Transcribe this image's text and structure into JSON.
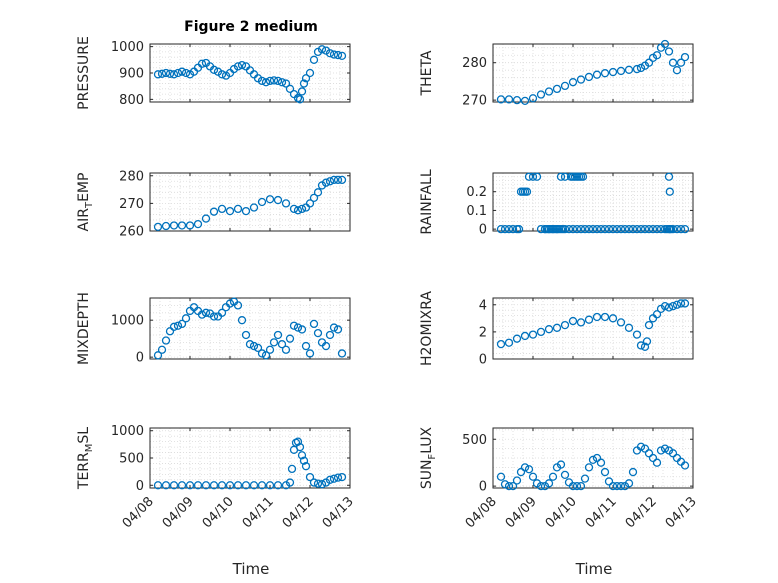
{
  "figure": {
    "title": "Figure 2 medium",
    "xlabel": "Time",
    "x_dates": [
      "04/08",
      "04/09",
      "04/10",
      "04/11",
      "04/12",
      "04/13"
    ],
    "marker_color": "#0072BD"
  },
  "chart_data": [
    {
      "type": "scatter",
      "ylabel": "PRESSURE",
      "yticks": [
        "800",
        "900",
        "1000"
      ],
      "ylim": [
        790,
        1010
      ],
      "x": [
        8.2,
        8.3,
        8.4,
        8.5,
        8.6,
        8.7,
        8.8,
        8.9,
        9.0,
        9.1,
        9.2,
        9.3,
        9.4,
        9.5,
        9.6,
        9.7,
        9.8,
        9.9,
        10.0,
        10.1,
        10.2,
        10.3,
        10.4,
        10.5,
        10.6,
        10.7,
        10.8,
        10.9,
        11.0,
        11.1,
        11.2,
        11.3,
        11.4,
        11.5,
        11.6,
        11.7,
        11.75,
        11.8,
        11.85,
        11.9,
        12.0,
        12.1,
        12.2,
        12.3,
        12.4,
        12.5,
        12.6,
        12.7,
        12.8
      ],
      "y": [
        895,
        897,
        900,
        897,
        895,
        900,
        905,
        900,
        895,
        905,
        920,
        935,
        938,
        925,
        912,
        905,
        895,
        890,
        900,
        915,
        925,
        930,
        925,
        910,
        895,
        880,
        870,
        865,
        870,
        872,
        870,
        865,
        860,
        840,
        820,
        805,
        800,
        830,
        860,
        880,
        900,
        950,
        980,
        990,
        985,
        975,
        970,
        968,
        965
      ]
    },
    {
      "type": "scatter",
      "ylabel": "THETA",
      "yticks": [
        "270",
        "280"
      ],
      "ylim": [
        269.5,
        285
      ],
      "x": [
        8.2,
        8.4,
        8.6,
        8.8,
        9.0,
        9.2,
        9.4,
        9.6,
        9.8,
        10.0,
        10.2,
        10.4,
        10.6,
        10.8,
        11.0,
        11.2,
        11.4,
        11.6,
        11.7,
        11.8,
        11.9,
        12.0,
        12.1,
        12.2,
        12.3,
        12.4,
        12.5,
        12.6,
        12.7,
        12.8
      ],
      "y": [
        270.2,
        270.2,
        270.0,
        269.8,
        270.5,
        271.5,
        272.3,
        273,
        273.8,
        274.8,
        275.5,
        276.2,
        276.8,
        277.2,
        277.5,
        277.8,
        278.1,
        278.3,
        278.6,
        279.2,
        280,
        281.3,
        282,
        284,
        285,
        283,
        280,
        278,
        280,
        281.5
      ]
    },
    {
      "type": "scatter",
      "ylabel": "AIR_TEMP",
      "ylabel_main": "AIR",
      "ylabel_sub": "T",
      "ylabel_rest": "EMP",
      "yticks": [
        "260",
        "270",
        "280"
      ],
      "ylim": [
        260,
        281
      ],
      "x": [
        8.2,
        8.4,
        8.6,
        8.8,
        9.0,
        9.2,
        9.4,
        9.6,
        9.8,
        10.0,
        10.2,
        10.4,
        10.6,
        10.8,
        11.0,
        11.2,
        11.4,
        11.6,
        11.7,
        11.8,
        11.9,
        12.0,
        12.1,
        12.2,
        12.3,
        12.4,
        12.5,
        12.6,
        12.7,
        12.8
      ],
      "y": [
        261.5,
        261.8,
        262,
        262,
        262,
        262.5,
        264.5,
        267,
        268,
        267.2,
        268,
        267.2,
        268.5,
        270.5,
        271.5,
        271.2,
        270,
        268,
        267.5,
        268,
        268.5,
        270,
        272,
        274,
        276.5,
        277.5,
        278,
        278.5,
        278.5,
        278.5
      ]
    },
    {
      "type": "scatter",
      "ylabel": "RAINFALL",
      "yticks": [
        "0",
        "0.1",
        "0.2"
      ],
      "ylim": [
        -0.01,
        0.3
      ],
      "x": [
        8.2,
        8.3,
        8.4,
        8.5,
        8.6,
        8.65,
        8.7,
        8.75,
        8.8,
        8.85,
        8.9,
        9.0,
        9.1,
        9.2,
        9.3,
        9.4,
        9.5,
        9.6,
        9.7,
        9.8,
        9.9,
        10.0,
        10.1,
        10.2,
        10.3,
        10.4,
        10.5,
        10.6,
        10.7,
        10.8,
        10.9,
        11.0,
        11.1,
        11.2,
        11.3,
        11.4,
        11.5,
        11.6,
        11.7,
        11.8,
        11.9,
        12.0,
        12.1,
        12.2,
        12.3,
        12.35,
        12.4,
        12.42,
        12.45,
        12.5,
        12.6,
        12.7,
        12.8,
        9.3,
        9.35,
        9.4,
        9.45,
        9.5,
        9.55,
        9.6,
        9.65,
        9.7,
        9.75,
        9.8,
        9.95,
        10.0,
        10.05,
        10.1,
        10.15,
        10.2,
        10.25,
        12.4,
        12.42
      ],
      "y": [
        0,
        0,
        0,
        0,
        0,
        0,
        0.2,
        0.2,
        0.2,
        0.2,
        0.28,
        0.28,
        0.28,
        0,
        0,
        0,
        0,
        0,
        0.28,
        0.28,
        0,
        0,
        0,
        0,
        0,
        0,
        0,
        0,
        0,
        0,
        0,
        0,
        0,
        0,
        0,
        0,
        0,
        0,
        0,
        0,
        0,
        0,
        0,
        0,
        0,
        0,
        0,
        0,
        0,
        0,
        0,
        0,
        0,
        0,
        0,
        0,
        0,
        0,
        0,
        0,
        0,
        0,
        0,
        0,
        0.28,
        0.28,
        0.28,
        0.28,
        0.28,
        0.28,
        0.28,
        0.28,
        0.2
      ]
    },
    {
      "type": "scatter",
      "ylabel": "MIXDEPTH",
      "yticks": [
        "0",
        "1000"
      ],
      "ylim": [
        -50,
        1600
      ],
      "x": [
        8.2,
        8.3,
        8.4,
        8.5,
        8.6,
        8.7,
        8.8,
        8.9,
        9.0,
        9.1,
        9.2,
        9.3,
        9.4,
        9.5,
        9.6,
        9.7,
        9.8,
        9.9,
        10.0,
        10.1,
        10.2,
        10.3,
        10.4,
        10.5,
        10.6,
        10.7,
        10.8,
        10.9,
        11.0,
        11.1,
        11.2,
        11.3,
        11.4,
        11.5,
        11.6,
        11.7,
        11.8,
        11.9,
        12.0,
        12.1,
        12.2,
        12.3,
        12.4,
        12.5,
        12.6,
        12.7,
        12.8
      ],
      "y": [
        50,
        200,
        450,
        700,
        820,
        850,
        900,
        1050,
        1250,
        1350,
        1250,
        1150,
        1200,
        1180,
        1100,
        1100,
        1200,
        1350,
        1450,
        1500,
        1400,
        1000,
        600,
        350,
        300,
        250,
        100,
        50,
        200,
        400,
        600,
        350,
        200,
        500,
        850,
        800,
        750,
        300,
        100,
        900,
        650,
        400,
        300,
        600,
        800,
        750,
        100
      ]
    },
    {
      "type": "scatter",
      "ylabel": "H2OMIXRA",
      "yticks": [
        "0",
        "2",
        "4"
      ],
      "ylim": [
        0,
        4.5
      ],
      "x": [
        8.2,
        8.4,
        8.6,
        8.8,
        9.0,
        9.2,
        9.4,
        9.6,
        9.8,
        10.0,
        10.2,
        10.4,
        10.6,
        10.8,
        11.0,
        11.2,
        11.4,
        11.6,
        11.7,
        11.8,
        11.85,
        11.9,
        12.0,
        12.1,
        12.2,
        12.3,
        12.4,
        12.5,
        12.6,
        12.7,
        12.8
      ],
      "y": [
        1.1,
        1.2,
        1.5,
        1.7,
        1.8,
        2.0,
        2.2,
        2.3,
        2.5,
        2.8,
        2.7,
        2.9,
        3.1,
        3.1,
        3.0,
        2.7,
        2.3,
        1.8,
        1.0,
        0.9,
        1.3,
        2.5,
        3.0,
        3.3,
        3.7,
        3.9,
        3.8,
        3.9,
        4.0,
        4.1,
        4.1
      ]
    },
    {
      "type": "scatter",
      "ylabel": "TERR_MSL",
      "ylabel_main": "TERR",
      "ylabel_sub": "M",
      "ylabel_rest": "SL",
      "yticks": [
        "0",
        "500",
        "1000"
      ],
      "ylim": [
        -50,
        1050
      ],
      "x": [
        8.2,
        8.4,
        8.6,
        8.8,
        9.0,
        9.2,
        9.4,
        9.6,
        9.8,
        10.0,
        10.2,
        10.4,
        10.6,
        10.8,
        11.0,
        11.2,
        11.4,
        11.5,
        11.55,
        11.6,
        11.65,
        11.7,
        11.75,
        11.8,
        11.85,
        11.9,
        12.0,
        12.1,
        12.2,
        12.3,
        12.4,
        12.5,
        12.6,
        12.7,
        12.8
      ],
      "y": [
        0,
        0,
        0,
        0,
        0,
        0,
        0,
        0,
        0,
        0,
        0,
        0,
        0,
        0,
        0,
        0,
        0,
        50,
        300,
        650,
        780,
        800,
        700,
        550,
        450,
        350,
        150,
        50,
        30,
        20,
        50,
        100,
        120,
        140,
        150
      ]
    },
    {
      "type": "scatter",
      "ylabel": "SUN_FLUX",
      "ylabel_main": "SUN",
      "ylabel_sub": "F",
      "ylabel_rest": "LUX",
      "yticks": [
        "0",
        "500"
      ],
      "ylim": [
        -20,
        620
      ],
      "x": [
        8.2,
        8.3,
        8.4,
        8.5,
        8.6,
        8.7,
        8.8,
        8.9,
        9.0,
        9.1,
        9.2,
        9.3,
        9.4,
        9.5,
        9.6,
        9.7,
        9.8,
        9.9,
        10.0,
        10.1,
        10.2,
        10.3,
        10.4,
        10.5,
        10.6,
        10.7,
        10.8,
        10.9,
        11.0,
        11.1,
        11.2,
        11.3,
        11.4,
        11.5,
        11.6,
        11.7,
        11.8,
        11.9,
        12.0,
        12.1,
        12.2,
        12.3,
        12.4,
        12.5,
        12.6,
        12.7,
        12.8
      ],
      "y": [
        100,
        20,
        0,
        0,
        60,
        150,
        200,
        180,
        100,
        30,
        0,
        0,
        30,
        100,
        200,
        230,
        120,
        40,
        0,
        0,
        0,
        80,
        200,
        280,
        300,
        250,
        150,
        50,
        0,
        0,
        0,
        0,
        30,
        150,
        380,
        420,
        400,
        350,
        300,
        250,
        380,
        400,
        380,
        350,
        300,
        260,
        220
      ]
    }
  ]
}
